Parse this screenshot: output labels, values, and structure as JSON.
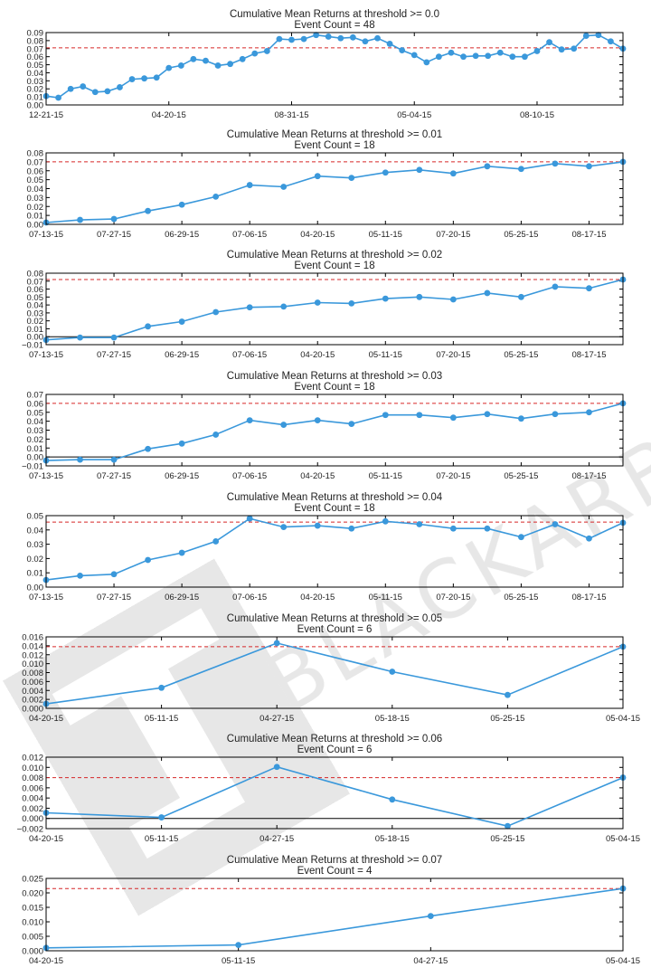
{
  "watermark": {
    "text": "BLACKARBS"
  },
  "colors": {
    "line": "#3a98db",
    "threshold": "#d62728",
    "zero": "#000000",
    "axis": "#000000",
    "text": "#222222",
    "watermark": "#d4d4d4"
  },
  "chart_data": [
    {
      "type": "line",
      "title": "Cumulative Mean Returns at threshold >= 0.0",
      "subtitle": "Event Count = 48",
      "values": [
        0.011,
        0.009,
        0.02,
        0.023,
        0.016,
        0.017,
        0.022,
        0.032,
        0.033,
        0.034,
        0.046,
        0.049,
        0.057,
        0.055,
        0.049,
        0.051,
        0.057,
        0.064,
        0.067,
        0.082,
        0.081,
        0.082,
        0.087,
        0.085,
        0.083,
        0.084,
        0.079,
        0.083,
        0.076,
        0.068,
        0.062,
        0.053,
        0.06,
        0.065,
        0.06,
        0.061,
        0.061,
        0.065,
        0.06,
        0.06,
        0.067,
        0.078,
        0.069,
        0.07,
        0.086,
        0.087,
        0.079,
        0.07
      ],
      "threshold_line": 0.071,
      "ylim": [
        0,
        0.09
      ],
      "yticks": [
        0.0,
        0.01,
        0.02,
        0.03,
        0.04,
        0.05,
        0.06,
        0.07,
        0.08,
        0.09
      ],
      "ytick_labels": [
        "0.00",
        "0.01",
        "0.02",
        "0.03",
        "0.04",
        "0.05",
        "0.06",
        "0.07",
        "0.08",
        "0.09"
      ],
      "xticks": [
        {
          "i": 0,
          "label": "12-21-15"
        },
        {
          "i": 10,
          "label": "04-20-15"
        },
        {
          "i": 20,
          "label": "08-31-15"
        },
        {
          "i": 30,
          "label": "05-04-15"
        },
        {
          "i": 40,
          "label": "08-10-15"
        }
      ]
    },
    {
      "type": "line",
      "title": "Cumulative Mean Returns at threshold >= 0.01",
      "subtitle": "Event Count = 18",
      "values": [
        0.002,
        0.005,
        0.006,
        0.015,
        0.022,
        0.031,
        0.044,
        0.042,
        0.054,
        0.052,
        0.058,
        0.061,
        0.057,
        0.065,
        0.062,
        0.068,
        0.065,
        0.07
      ],
      "threshold_line": 0.07,
      "ylim": [
        0,
        0.08
      ],
      "yticks": [
        0.0,
        0.01,
        0.02,
        0.03,
        0.04,
        0.05,
        0.06,
        0.07,
        0.08
      ],
      "ytick_labels": [
        "0.00",
        "0.01",
        "0.02",
        "0.03",
        "0.04",
        "0.05",
        "0.06",
        "0.07",
        "0.08"
      ],
      "xticks": [
        {
          "i": 0,
          "label": "07-13-15"
        },
        {
          "i": 2,
          "label": "07-27-15"
        },
        {
          "i": 4,
          "label": "06-29-15"
        },
        {
          "i": 6,
          "label": "07-06-15"
        },
        {
          "i": 8,
          "label": "04-20-15"
        },
        {
          "i": 10,
          "label": "05-11-15"
        },
        {
          "i": 12,
          "label": "07-20-15"
        },
        {
          "i": 14,
          "label": "05-25-15"
        },
        {
          "i": 16,
          "label": "08-17-15"
        }
      ]
    },
    {
      "type": "line",
      "title": "Cumulative Mean Returns at threshold >= 0.02",
      "subtitle": "Event Count = 18",
      "values": [
        -0.004,
        -0.001,
        -0.001,
        0.013,
        0.019,
        0.031,
        0.037,
        0.038,
        0.043,
        0.042,
        0.048,
        0.05,
        0.047,
        0.055,
        0.05,
        0.063,
        0.061,
        0.072
      ],
      "threshold_line": 0.072,
      "zero_line": true,
      "ylim": [
        -0.01,
        0.08
      ],
      "yticks": [
        -0.01,
        0.0,
        0.01,
        0.02,
        0.03,
        0.04,
        0.05,
        0.06,
        0.07,
        0.08
      ],
      "ytick_labels": [
        "−0.01",
        "0.00",
        "0.01",
        "0.02",
        "0.03",
        "0.04",
        "0.05",
        "0.06",
        "0.07",
        "0.08"
      ],
      "xticks": [
        {
          "i": 0,
          "label": "07-13-15"
        },
        {
          "i": 2,
          "label": "07-27-15"
        },
        {
          "i": 4,
          "label": "06-29-15"
        },
        {
          "i": 6,
          "label": "07-06-15"
        },
        {
          "i": 8,
          "label": "04-20-15"
        },
        {
          "i": 10,
          "label": "05-11-15"
        },
        {
          "i": 12,
          "label": "07-20-15"
        },
        {
          "i": 14,
          "label": "05-25-15"
        },
        {
          "i": 16,
          "label": "08-17-15"
        }
      ]
    },
    {
      "type": "line",
      "title": "Cumulative Mean Returns at threshold >= 0.03",
      "subtitle": "Event Count = 18",
      "values": [
        -0.004,
        -0.003,
        -0.003,
        0.009,
        0.015,
        0.025,
        0.041,
        0.036,
        0.041,
        0.037,
        0.047,
        0.047,
        0.044,
        0.048,
        0.043,
        0.048,
        0.05,
        0.06
      ],
      "threshold_line": 0.06,
      "zero_line": true,
      "ylim": [
        -0.01,
        0.07
      ],
      "yticks": [
        -0.01,
        0.0,
        0.01,
        0.02,
        0.03,
        0.04,
        0.05,
        0.06,
        0.07
      ],
      "ytick_labels": [
        "−0.01",
        "0.00",
        "0.01",
        "0.02",
        "0.03",
        "0.04",
        "0.05",
        "0.06",
        "0.07"
      ],
      "xticks": [
        {
          "i": 0,
          "label": "07-13-15"
        },
        {
          "i": 2,
          "label": "07-27-15"
        },
        {
          "i": 4,
          "label": "06-29-15"
        },
        {
          "i": 6,
          "label": "07-06-15"
        },
        {
          "i": 8,
          "label": "04-20-15"
        },
        {
          "i": 10,
          "label": "05-11-15"
        },
        {
          "i": 12,
          "label": "07-20-15"
        },
        {
          "i": 14,
          "label": "05-25-15"
        },
        {
          "i": 16,
          "label": "08-17-15"
        }
      ]
    },
    {
      "type": "line",
      "title": "Cumulative Mean Returns at threshold >= 0.04",
      "subtitle": "Event Count = 18",
      "values": [
        0.005,
        0.008,
        0.009,
        0.019,
        0.024,
        0.032,
        0.048,
        0.042,
        0.043,
        0.041,
        0.046,
        0.044,
        0.041,
        0.041,
        0.035,
        0.044,
        0.034,
        0.045
      ],
      "threshold_line": 0.0455,
      "ylim": [
        0,
        0.05
      ],
      "yticks": [
        0.0,
        0.01,
        0.02,
        0.03,
        0.04,
        0.05
      ],
      "ytick_labels": [
        "0.00",
        "0.01",
        "0.02",
        "0.03",
        "0.04",
        "0.05"
      ],
      "xticks": [
        {
          "i": 0,
          "label": "07-13-15"
        },
        {
          "i": 2,
          "label": "07-27-15"
        },
        {
          "i": 4,
          "label": "06-29-15"
        },
        {
          "i": 6,
          "label": "07-06-15"
        },
        {
          "i": 8,
          "label": "04-20-15"
        },
        {
          "i": 10,
          "label": "05-11-15"
        },
        {
          "i": 12,
          "label": "07-20-15"
        },
        {
          "i": 14,
          "label": "05-25-15"
        },
        {
          "i": 16,
          "label": "08-17-15"
        }
      ]
    },
    {
      "type": "line",
      "title": "Cumulative Mean Returns at threshold >= 0.05",
      "subtitle": "Event Count = 6",
      "values": [
        0.001,
        0.0046,
        0.0146,
        0.0082,
        0.003,
        0.0138
      ],
      "threshold_line": 0.0138,
      "ylim": [
        0,
        0.016
      ],
      "yticks": [
        0.0,
        0.002,
        0.004,
        0.006,
        0.008,
        0.01,
        0.012,
        0.014,
        0.016
      ],
      "ytick_labels": [
        "0.000",
        "0.002",
        "0.004",
        "0.006",
        "0.008",
        "0.010",
        "0.012",
        "0.014",
        "0.016"
      ],
      "xticks": [
        {
          "i": 0,
          "label": "04-20-15"
        },
        {
          "i": 1,
          "label": "05-11-15"
        },
        {
          "i": 2,
          "label": "04-27-15"
        },
        {
          "i": 3,
          "label": "05-18-15"
        },
        {
          "i": 4,
          "label": "05-25-15"
        },
        {
          "i": 5,
          "label": "05-04-15"
        }
      ]
    },
    {
      "type": "line",
      "title": "Cumulative Mean Returns at threshold >= 0.06",
      "subtitle": "Event Count = 6",
      "values": [
        0.0011,
        0.0002,
        0.0101,
        0.0037,
        -0.0015,
        0.008
      ],
      "threshold_line": 0.008,
      "zero_line": true,
      "ylim": [
        -0.002,
        0.012
      ],
      "yticks": [
        -0.002,
        0.0,
        0.002,
        0.004,
        0.006,
        0.008,
        0.01,
        0.012
      ],
      "ytick_labels": [
        "−0.002",
        "0.000",
        "0.002",
        "0.004",
        "0.006",
        "0.008",
        "0.010",
        "0.012"
      ],
      "xticks": [
        {
          "i": 0,
          "label": "04-20-15"
        },
        {
          "i": 1,
          "label": "05-11-15"
        },
        {
          "i": 2,
          "label": "04-27-15"
        },
        {
          "i": 3,
          "label": "05-18-15"
        },
        {
          "i": 4,
          "label": "05-25-15"
        },
        {
          "i": 5,
          "label": "05-04-15"
        }
      ]
    },
    {
      "type": "line",
      "title": "Cumulative Mean Returns at threshold >= 0.07",
      "subtitle": "Event Count = 4",
      "values": [
        0.001,
        0.002,
        0.012,
        0.0215
      ],
      "threshold_line": 0.0215,
      "ylim": [
        0,
        0.025
      ],
      "yticks": [
        0.0,
        0.005,
        0.01,
        0.015,
        0.02,
        0.025
      ],
      "ytick_labels": [
        "0.000",
        "0.005",
        "0.010",
        "0.015",
        "0.020",
        "0.025"
      ],
      "xticks": [
        {
          "i": 0,
          "label": "04-20-15"
        },
        {
          "i": 1,
          "label": "05-11-15"
        },
        {
          "i": 2,
          "label": "04-27-15"
        },
        {
          "i": 3,
          "label": "05-04-15"
        }
      ]
    }
  ]
}
